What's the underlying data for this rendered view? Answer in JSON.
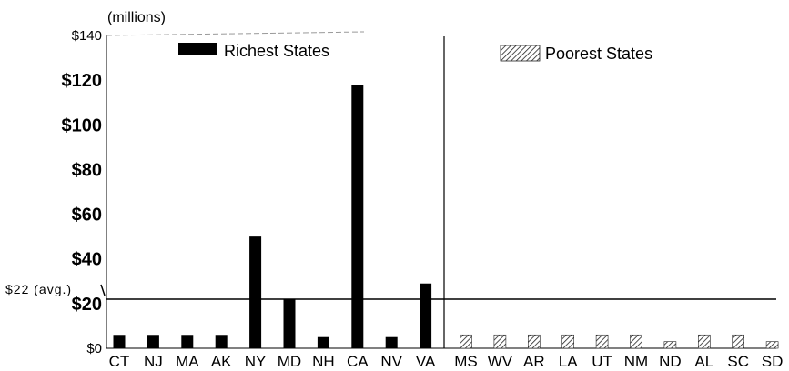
{
  "chart_data": {
    "type": "bar",
    "units_label": "(millions)",
    "y_axis": {
      "ylim": [
        0,
        140
      ],
      "tick_values": [
        0,
        20,
        40,
        60,
        80,
        100,
        120,
        140
      ],
      "tick_labels": [
        "$0",
        "$20",
        "$40",
        "$60",
        "$80",
        "$100",
        "$120",
        "$140"
      ]
    },
    "average": {
      "value": 22,
      "label": "$22 (avg.)"
    },
    "groups": [
      {
        "name": "Richest States",
        "categories": [
          "CT",
          "NJ",
          "MA",
          "AK",
          "NY",
          "MD",
          "NH",
          "CA",
          "NV",
          "VA"
        ],
        "values": [
          6,
          6,
          6,
          6,
          50,
          22,
          5,
          118,
          5,
          29
        ],
        "color": "#000000"
      },
      {
        "name": "Poorest States",
        "categories": [
          "MS",
          "WV",
          "AR",
          "LA",
          "UT",
          "NM",
          "ND",
          "AL",
          "SC",
          "SD"
        ],
        "values": [
          6,
          6,
          6,
          6,
          6,
          6,
          3,
          6,
          6,
          3
        ],
        "color": "#555555"
      }
    ],
    "grid": false,
    "legend_placement": "top"
  }
}
